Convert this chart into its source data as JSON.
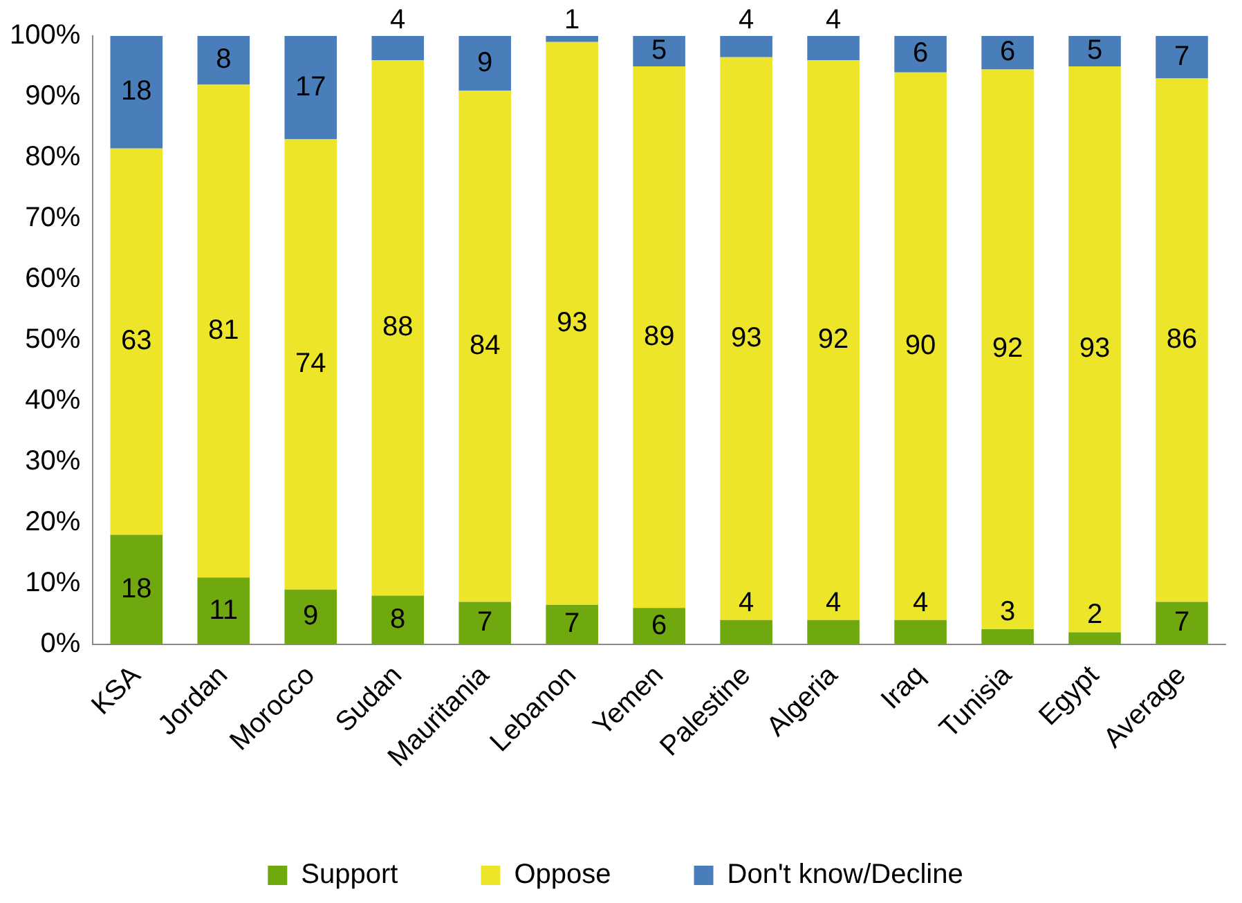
{
  "chart_data": {
    "type": "bar",
    "stacked": true,
    "categories": [
      "KSA",
      "Jordan",
      "Morocco",
      "Sudan",
      "Mauritania",
      "Lebanon",
      "Yemen",
      "Palestine",
      "Algeria",
      "Iraq",
      "Tunisia",
      "Egypt",
      "Average"
    ],
    "series": [
      {
        "name": "Support",
        "color": "#6fa80f",
        "values": [
          18,
          11,
          9,
          8,
          7,
          6.5,
          6,
          4,
          4,
          4,
          2.5,
          2,
          7
        ],
        "value_labels": [
          "18",
          "11",
          "9",
          "8",
          "7",
          "7",
          "6",
          "4",
          "4",
          "4",
          "3",
          "2",
          "7"
        ]
      },
      {
        "name": "Oppose",
        "color": "#ece52a",
        "values": [
          63.5,
          81,
          74,
          88,
          84,
          92.5,
          89,
          92.5,
          92,
          90,
          92,
          93,
          86
        ],
        "value_labels": [
          "63",
          "81",
          "74",
          "88",
          "84",
          "93",
          "89",
          "93",
          "92",
          "90",
          "92",
          "93",
          "86"
        ]
      },
      {
        "name": "Don't know/Decline",
        "color": "#4a7ebb",
        "values": [
          18.5,
          8,
          17,
          4,
          9,
          1,
          5,
          3.5,
          4,
          6,
          5.5,
          5,
          7
        ],
        "value_labels": [
          "18",
          "8",
          "17",
          "4",
          "9",
          "1",
          "5",
          "4",
          "4",
          "6",
          "6",
          "5",
          "7"
        ]
      }
    ],
    "ylim": [
      0,
      100
    ],
    "yticks": [
      {
        "value": 0,
        "label": "0%"
      },
      {
        "value": 10,
        "label": "10%"
      },
      {
        "value": 20,
        "label": "20%"
      },
      {
        "value": 30,
        "label": "30%"
      },
      {
        "value": 40,
        "label": "40%"
      },
      {
        "value": 50,
        "label": "50%"
      },
      {
        "value": 60,
        "label": "60%"
      },
      {
        "value": 70,
        "label": "70%"
      },
      {
        "value": 80,
        "label": "80%"
      },
      {
        "value": 90,
        "label": "90%"
      },
      {
        "value": 100,
        "label": "100%"
      }
    ],
    "grid": false,
    "legend": "bottom"
  }
}
